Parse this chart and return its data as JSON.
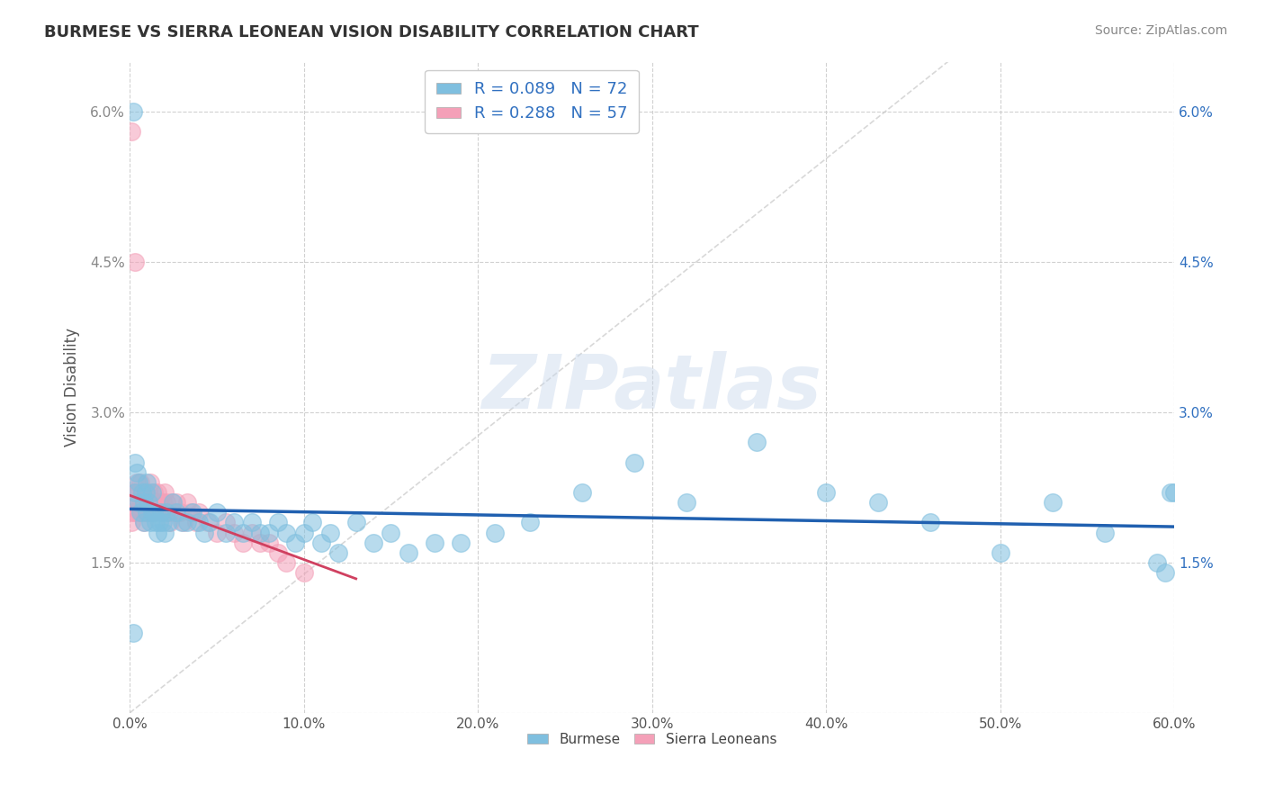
{
  "title": "BURMESE VS SIERRA LEONEAN VISION DISABILITY CORRELATION CHART",
  "source": "Source: ZipAtlas.com",
  "ylabel": "Vision Disability",
  "watermark": "ZIPatlas",
  "xlim": [
    0.0,
    0.6
  ],
  "ylim": [
    0.0,
    0.065
  ],
  "xticks": [
    0.0,
    0.1,
    0.2,
    0.3,
    0.4,
    0.5,
    0.6
  ],
  "xticklabels": [
    "0.0%",
    "10.0%",
    "20.0%",
    "30.0%",
    "40.0%",
    "50.0%",
    "60.0%"
  ],
  "yticks_left": [
    0.0,
    0.015,
    0.03,
    0.045,
    0.06
  ],
  "yticklabels_left": [
    "",
    "1.5%",
    "3.0%",
    "4.5%",
    "6.0%"
  ],
  "yticks_right": [
    0.0,
    0.015,
    0.03,
    0.045,
    0.06
  ],
  "yticklabels_right": [
    "",
    "1.5%",
    "3.0%",
    "4.5%",
    "6.0%"
  ],
  "burmese_color": "#7fbfdf",
  "sierra_color": "#f4a0b8",
  "burmese_line_color": "#2060b0",
  "sierra_line_color": "#d04060",
  "sierra_dashed_color": "#d0a0b0",
  "background_color": "#ffffff",
  "grid_color": "#cccccc",
  "title_color": "#333333",
  "right_tick_color": "#3070c0",
  "burmese_x": [
    0.003,
    0.003,
    0.004,
    0.005,
    0.005,
    0.006,
    0.007,
    0.008,
    0.008,
    0.009,
    0.01,
    0.01,
    0.011,
    0.012,
    0.013,
    0.013,
    0.014,
    0.015,
    0.016,
    0.017,
    0.018,
    0.019,
    0.02,
    0.021,
    0.022,
    0.025,
    0.027,
    0.03,
    0.033,
    0.036,
    0.04,
    0.043,
    0.046,
    0.05,
    0.055,
    0.06,
    0.065,
    0.07,
    0.075,
    0.08,
    0.085,
    0.09,
    0.095,
    0.1,
    0.105,
    0.11,
    0.115,
    0.12,
    0.13,
    0.14,
    0.15,
    0.16,
    0.175,
    0.19,
    0.21,
    0.23,
    0.26,
    0.29,
    0.32,
    0.36,
    0.4,
    0.43,
    0.46,
    0.5,
    0.53,
    0.56,
    0.59,
    0.595,
    0.598,
    0.002,
    0.002,
    0.6
  ],
  "burmese_y": [
    0.025,
    0.022,
    0.024,
    0.021,
    0.023,
    0.02,
    0.022,
    0.021,
    0.019,
    0.022,
    0.02,
    0.023,
    0.021,
    0.019,
    0.02,
    0.022,
    0.02,
    0.019,
    0.018,
    0.019,
    0.02,
    0.019,
    0.018,
    0.02,
    0.019,
    0.021,
    0.02,
    0.019,
    0.019,
    0.02,
    0.019,
    0.018,
    0.019,
    0.02,
    0.018,
    0.019,
    0.018,
    0.019,
    0.018,
    0.018,
    0.019,
    0.018,
    0.017,
    0.018,
    0.019,
    0.017,
    0.018,
    0.016,
    0.019,
    0.017,
    0.018,
    0.016,
    0.017,
    0.017,
    0.018,
    0.019,
    0.022,
    0.025,
    0.021,
    0.027,
    0.022,
    0.021,
    0.019,
    0.016,
    0.021,
    0.018,
    0.015,
    0.014,
    0.022,
    0.06,
    0.008,
    0.022
  ],
  "sierra_x": [
    0.001,
    0.001,
    0.002,
    0.002,
    0.003,
    0.003,
    0.004,
    0.004,
    0.005,
    0.005,
    0.006,
    0.006,
    0.007,
    0.007,
    0.008,
    0.008,
    0.009,
    0.01,
    0.01,
    0.011,
    0.011,
    0.012,
    0.012,
    0.013,
    0.014,
    0.014,
    0.015,
    0.016,
    0.017,
    0.018,
    0.019,
    0.02,
    0.021,
    0.022,
    0.023,
    0.024,
    0.025,
    0.027,
    0.029,
    0.031,
    0.033,
    0.035,
    0.038,
    0.04,
    0.045,
    0.05,
    0.055,
    0.06,
    0.065,
    0.07,
    0.075,
    0.08,
    0.085,
    0.09,
    0.1,
    0.001,
    0.003
  ],
  "sierra_y": [
    0.02,
    0.019,
    0.021,
    0.022,
    0.02,
    0.022,
    0.021,
    0.023,
    0.022,
    0.02,
    0.021,
    0.023,
    0.02,
    0.022,
    0.021,
    0.019,
    0.022,
    0.021,
    0.02,
    0.022,
    0.021,
    0.02,
    0.023,
    0.021,
    0.022,
    0.02,
    0.021,
    0.022,
    0.021,
    0.02,
    0.021,
    0.022,
    0.021,
    0.02,
    0.019,
    0.021,
    0.02,
    0.021,
    0.02,
    0.019,
    0.021,
    0.02,
    0.019,
    0.02,
    0.019,
    0.018,
    0.019,
    0.018,
    0.017,
    0.018,
    0.017,
    0.017,
    0.016,
    0.015,
    0.014,
    0.058,
    0.045
  ]
}
